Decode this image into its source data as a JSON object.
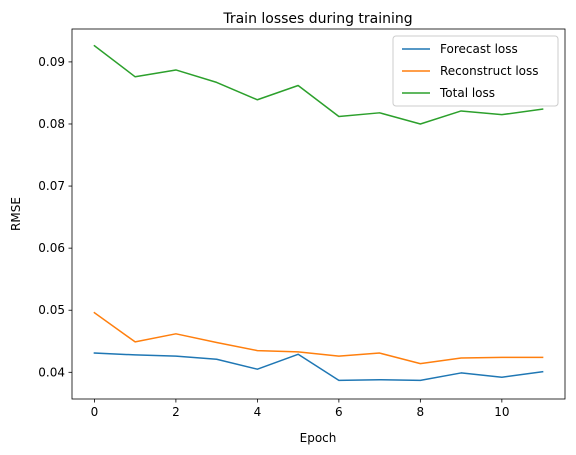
{
  "chart_data": {
    "type": "line",
    "title": "Train losses during training",
    "xlabel": "Epoch",
    "ylabel": "RMSE",
    "xlim": [
      -0.55,
      11.55
    ],
    "ylim": [
      0.0357,
      0.0953
    ],
    "xticks": [
      0,
      2,
      4,
      6,
      8,
      10
    ],
    "xtick_labels": [
      "0",
      "2",
      "4",
      "6",
      "8",
      "10"
    ],
    "yticks": [
      0.04,
      0.05,
      0.06,
      0.07,
      0.08,
      0.09
    ],
    "ytick_labels": [
      "0.04",
      "0.05",
      "0.06",
      "0.07",
      "0.08",
      "0.09"
    ],
    "grid": false,
    "legend_position": "top-right",
    "x": [
      0,
      1,
      2,
      3,
      4,
      5,
      6,
      7,
      8,
      9,
      10,
      11
    ],
    "series": [
      {
        "name": "Forecast loss",
        "color": "#1f77b4",
        "values": [
          0.0431,
          0.0428,
          0.0426,
          0.0421,
          0.0405,
          0.0429,
          0.0387,
          0.0388,
          0.0387,
          0.0399,
          0.0392,
          0.0401
        ]
      },
      {
        "name": "Reconstruct loss",
        "color": "#ff7f0e",
        "values": [
          0.0496,
          0.0449,
          0.0462,
          0.0448,
          0.0435,
          0.0433,
          0.0426,
          0.0431,
          0.0414,
          0.0423,
          0.0424,
          0.0424
        ]
      },
      {
        "name": "Total loss",
        "color": "#2ca02c",
        "values": [
          0.0926,
          0.0876,
          0.0887,
          0.0867,
          0.0839,
          0.0862,
          0.0812,
          0.0818,
          0.08,
          0.0821,
          0.0815,
          0.0824
        ]
      }
    ]
  }
}
